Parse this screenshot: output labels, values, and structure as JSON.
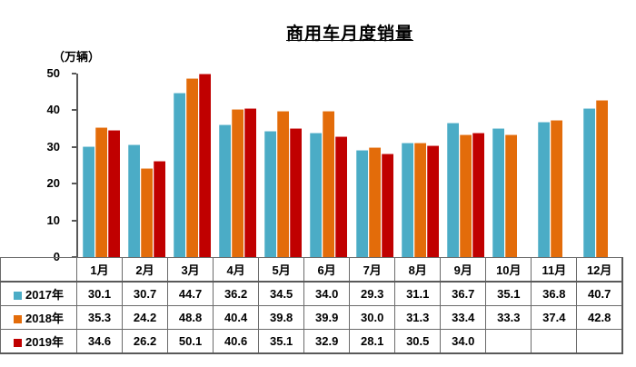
{
  "title": "商用车月度销量",
  "unit_label": "（万辆）",
  "colors": {
    "series_2017": "#4BACC6",
    "series_2018": "#E36C0A",
    "series_2019": "#C00000",
    "axis": "#595959",
    "table_border": "#6b6b6b",
    "text": "#000000"
  },
  "chart_data": {
    "type": "bar",
    "title": "商用车月度销量",
    "ylabel": "（万辆）",
    "xlabel": "",
    "ylim": [
      0,
      50
    ],
    "y_ticks": [
      0,
      10,
      20,
      30,
      40,
      50
    ],
    "grid": false,
    "legend_position": "table-left",
    "categories": [
      "1月",
      "2月",
      "3月",
      "4月",
      "5月",
      "6月",
      "7月",
      "8月",
      "9月",
      "10月",
      "11月",
      "12月"
    ],
    "series": [
      {
        "name": "2017年",
        "color": "#4BACC6",
        "values": [
          30.1,
          30.7,
          44.7,
          36.2,
          34.5,
          34.0,
          29.3,
          31.1,
          36.7,
          35.1,
          36.8,
          40.7
        ]
      },
      {
        "name": "2018年",
        "color": "#E36C0A",
        "values": [
          35.3,
          24.2,
          48.8,
          40.4,
          39.8,
          39.9,
          30.0,
          31.3,
          33.4,
          33.3,
          37.4,
          42.8
        ]
      },
      {
        "name": "2019年",
        "color": "#C00000",
        "values": [
          34.6,
          26.2,
          50.1,
          40.6,
          35.1,
          32.9,
          28.1,
          30.5,
          34.0,
          null,
          null,
          null
        ]
      }
    ]
  }
}
